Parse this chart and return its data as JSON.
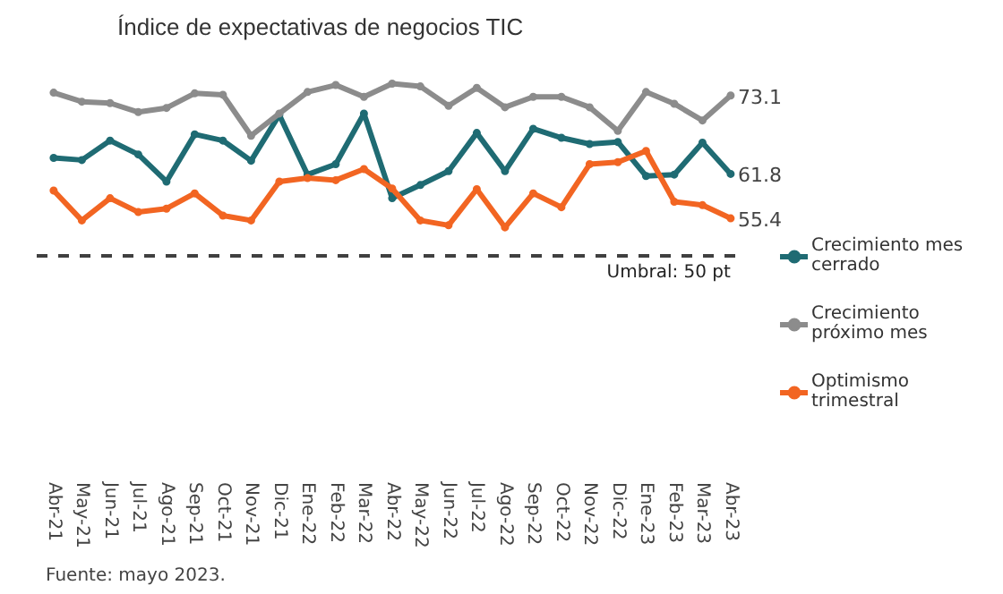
{
  "chart_data": {
    "type": "line",
    "title": "Índice de expectativas de negocios TIC",
    "categories": [
      "Abr-21",
      "May-21",
      "Jun-21",
      "Jul-21",
      "Ago-21",
      "Sep-21",
      "Oct-21",
      "Nov-21",
      "Dic-21",
      "Ene-22",
      "Feb-22",
      "Mar-22",
      "Abr-22",
      "May-22",
      "Jun-22",
      "Jul-22",
      "Ago-22",
      "Sep-22",
      "Oct-22",
      "Nov-22",
      "Dic-22",
      "Ene-23",
      "Feb-23",
      "Mar-23",
      "Abr-23"
    ],
    "series": [
      {
        "name": "Crecimiento mes cerrado",
        "color": "#1f6b73",
        "values": [
          64.1,
          63.8,
          66.6,
          64.6,
          60.7,
          67.5,
          66.6,
          63.7,
          70.3,
          61.7,
          63.2,
          70.5,
          58.3,
          60.2,
          62.2,
          67.7,
          62.2,
          68.3,
          67.0,
          66.1,
          66.4,
          61.5,
          61.7,
          66.3,
          61.8
        ],
        "value_labels": [
          null,
          null,
          null,
          null,
          null,
          null,
          null,
          null,
          null,
          null,
          null,
          null,
          null,
          null,
          null,
          null,
          null,
          null,
          null,
          null,
          null,
          null,
          null,
          null,
          "61.8"
        ]
      },
      {
        "name": "Crecimiento próximo mes",
        "color": "#8c8c8c",
        "values": [
          73.5,
          72.2,
          72.0,
          70.7,
          71.3,
          73.4,
          73.2,
          67.3,
          70.5,
          73.6,
          74.6,
          72.9,
          74.8,
          74.4,
          71.6,
          74.2,
          71.4,
          72.9,
          72.9,
          71.4,
          68.0,
          73.6,
          71.9,
          69.5,
          73.1
        ],
        "value_labels": [
          null,
          null,
          null,
          null,
          null,
          null,
          null,
          null,
          null,
          null,
          null,
          null,
          null,
          null,
          null,
          null,
          null,
          null,
          null,
          null,
          null,
          null,
          null,
          null,
          "73.1"
        ]
      },
      {
        "name": "Optimismo trimestral",
        "color": "#f26522",
        "values": [
          59.4,
          55.1,
          58.3,
          56.3,
          56.8,
          59.0,
          55.8,
          55.1,
          60.7,
          61.2,
          60.9,
          62.5,
          59.7,
          55.1,
          54.4,
          59.6,
          54.1,
          59.0,
          57.0,
          63.2,
          63.5,
          65.1,
          57.8,
          57.3,
          55.4
        ],
        "value_labels": [
          null,
          null,
          null,
          null,
          null,
          null,
          null,
          null,
          null,
          null,
          null,
          null,
          null,
          null,
          null,
          null,
          null,
          null,
          null,
          null,
          null,
          null,
          null,
          null,
          "55.4"
        ]
      }
    ],
    "ref_lines": [
      {
        "axis": "y",
        "value": 50,
        "label": "Umbral: 50 pt",
        "color": "#404040",
        "line_style": "dashed"
      }
    ],
    "annotations": [
      "Fuente: mayo 2023."
    ],
    "legend": "right",
    "grid": false,
    "marker": "circle",
    "line_style": "solid"
  }
}
